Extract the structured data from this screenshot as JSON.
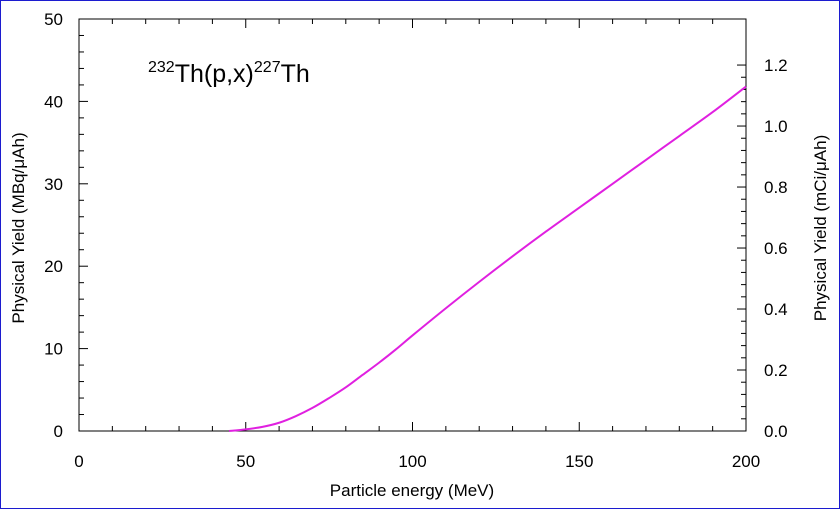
{
  "chart_data": {
    "type": "line",
    "title": {
      "target_mass": "232",
      "target": "Th(p,x)",
      "product_mass": "227",
      "product": "Th"
    },
    "xlabel": "Particle energy (MeV)",
    "ylabel": "Physical Yield (MBq/μAh)",
    "y2label": "Physical Yield (mCi/μAh)",
    "xlim": [
      0,
      200
    ],
    "ylim": [
      0,
      50
    ],
    "y2lim": [
      0,
      1.351
    ],
    "x_ticks": [
      "0",
      "50",
      "100",
      "150",
      "200"
    ],
    "y_ticks": [
      "0",
      "10",
      "20",
      "30",
      "40",
      "50"
    ],
    "y2_ticks": [
      "0.0",
      "0.2",
      "0.4",
      "0.6",
      "0.8",
      "1.0",
      "1.2"
    ],
    "grid": false,
    "series": [
      {
        "color": "#e020e0",
        "x": [
          45,
          50,
          55,
          60,
          65,
          70,
          75,
          80,
          85,
          90,
          95,
          100,
          110,
          120,
          130,
          140,
          150,
          160,
          170,
          180,
          190,
          200
        ],
        "y": [
          0,
          0.2,
          0.5,
          1.0,
          1.8,
          2.8,
          4.0,
          5.3,
          6.8,
          8.3,
          9.9,
          11.6,
          14.9,
          18.1,
          21.2,
          24.2,
          27.1,
          30.0,
          32.9,
          35.8,
          38.7,
          41.8
        ]
      }
    ]
  }
}
